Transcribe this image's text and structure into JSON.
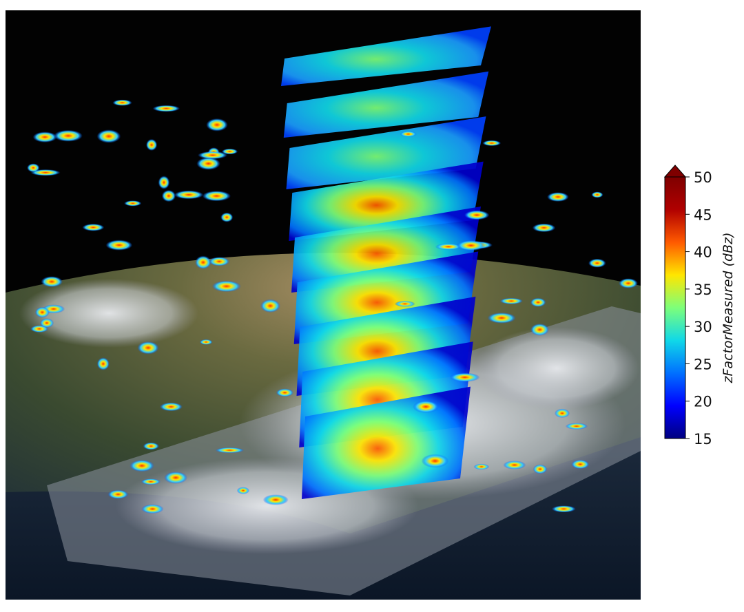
{
  "colorbar": {
    "label": "zFactorMeasured (dBz)",
    "min": 15,
    "max": 50,
    "extend": "max",
    "colormap": "jet",
    "ticks": [
      "15",
      "20",
      "25",
      "30",
      "35",
      "40",
      "45",
      "50"
    ],
    "colors": [
      "#00007f",
      "#0000ff",
      "#0070ff",
      "#10d8e8",
      "#7dff7a",
      "#ffe600",
      "#ff5a00",
      "#b00000",
      "#7f0000"
    ]
  },
  "scene": {
    "background": "#000000",
    "radar_layers": 9
  }
}
